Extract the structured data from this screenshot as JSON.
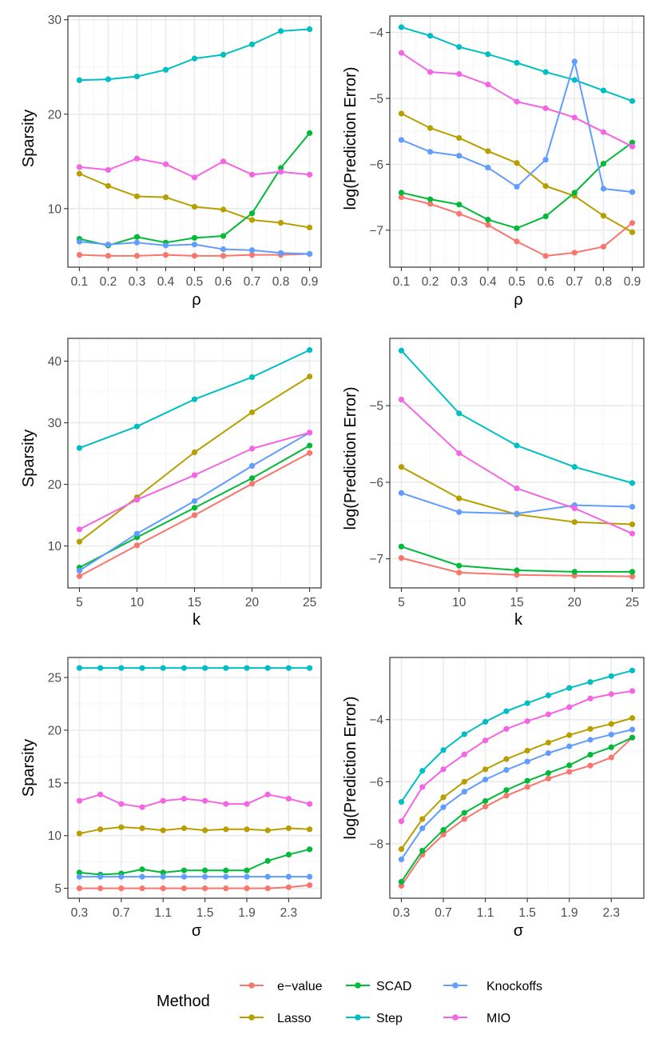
{
  "colors": {
    "e-value": "#F8766D",
    "Lasso": "#B79F00",
    "SCAD": "#00BA38",
    "Step": "#00BFC4",
    "Knockoffs": "#619CFF",
    "MIO": "#F564E3",
    "grid_major": "#EBEBEB",
    "grid_minor": "#F5F5F5",
    "panel_border": "#333333",
    "tick_text": "#4D4D4D"
  },
  "legend": {
    "title": "Method",
    "items": [
      {
        "name": "e-value",
        "label": "e−value"
      },
      {
        "name": "Lasso",
        "label": "Lasso"
      },
      {
        "name": "SCAD",
        "label": "SCAD"
      },
      {
        "name": "Step",
        "label": "Step"
      },
      {
        "name": "Knockoffs",
        "label": "Knockoffs"
      },
      {
        "name": "MIO",
        "label": "MIO"
      }
    ]
  },
  "chart_data": [
    {
      "type": "line",
      "id": "sparsity-rho",
      "xlabel": "ρ",
      "ylabel": "Sparsity",
      "x": [
        0.1,
        0.2,
        0.3,
        0.4,
        0.5,
        0.6,
        0.7,
        0.8,
        0.9
      ],
      "xticks": [
        0.1,
        0.2,
        0.3,
        0.4,
        0.5,
        0.6,
        0.7,
        0.8,
        0.9
      ],
      "xtick_labels": [
        "0.1",
        "0.2",
        "0.3",
        "0.4",
        "0.5",
        "0.6",
        "0.7",
        "0.8",
        "0.9"
      ],
      "xlim": [
        0.06,
        0.94
      ],
      "yticks": [
        10,
        20,
        30
      ],
      "ytick_labels": [
        "10",
        "20",
        "30"
      ],
      "ylim": [
        3.8,
        30.4
      ],
      "series": [
        {
          "name": "e-value",
          "values": [
            5.1,
            5.0,
            5.0,
            5.1,
            5.0,
            5.0,
            5.1,
            5.1,
            5.2
          ]
        },
        {
          "name": "Lasso",
          "values": [
            13.7,
            12.4,
            11.3,
            11.2,
            10.2,
            9.9,
            8.8,
            8.5,
            8.0
          ]
        },
        {
          "name": "SCAD",
          "values": [
            6.8,
            6.1,
            7.0,
            6.4,
            6.9,
            7.1,
            9.5,
            14.3,
            18.0
          ]
        },
        {
          "name": "Step",
          "values": [
            23.6,
            23.7,
            24.0,
            24.7,
            25.9,
            26.3,
            27.4,
            28.8,
            29.0
          ]
        },
        {
          "name": "Knockoffs",
          "values": [
            6.5,
            6.2,
            6.4,
            6.1,
            6.2,
            5.7,
            5.6,
            5.3,
            5.2
          ]
        },
        {
          "name": "MIO",
          "values": [
            14.4,
            14.1,
            15.3,
            14.7,
            13.3,
            15.0,
            13.6,
            13.9,
            13.6
          ]
        }
      ]
    },
    {
      "type": "line",
      "id": "prediction-rho",
      "xlabel": "ρ",
      "ylabel": "log(Prediction Error)",
      "x": [
        0.1,
        0.2,
        0.3,
        0.4,
        0.5,
        0.6,
        0.7,
        0.8,
        0.9
      ],
      "xticks": [
        0.1,
        0.2,
        0.3,
        0.4,
        0.5,
        0.6,
        0.7,
        0.8,
        0.9
      ],
      "xtick_labels": [
        "0.1",
        "0.2",
        "0.3",
        "0.4",
        "0.5",
        "0.6",
        "0.7",
        "0.8",
        "0.9"
      ],
      "xlim": [
        0.06,
        0.94
      ],
      "yticks": [
        -7,
        -6,
        -5,
        -4
      ],
      "ytick_labels": [
        "−7",
        "−6",
        "−5",
        "−4"
      ],
      "ylim": [
        -7.56,
        -3.75
      ],
      "series": [
        {
          "name": "e-value",
          "values": [
            -6.5,
            -6.6,
            -6.75,
            -6.92,
            -7.17,
            -7.39,
            -7.34,
            -7.25,
            -6.89
          ]
        },
        {
          "name": "Lasso",
          "values": [
            -5.23,
            -5.45,
            -5.6,
            -5.8,
            -5.98,
            -6.33,
            -6.48,
            -6.78,
            -7.03
          ]
        },
        {
          "name": "SCAD",
          "values": [
            -6.43,
            -6.53,
            -6.61,
            -6.84,
            -6.97,
            -6.79,
            -6.43,
            -5.99,
            -5.67
          ]
        },
        {
          "name": "Step",
          "values": [
            -3.92,
            -4.05,
            -4.22,
            -4.33,
            -4.46,
            -4.6,
            -4.72,
            -4.88,
            -5.04
          ]
        },
        {
          "name": "Knockoffs",
          "values": [
            -5.63,
            -5.81,
            -5.87,
            -6.05,
            -6.34,
            -5.93,
            -4.44,
            -6.37,
            -6.42
          ]
        },
        {
          "name": "MIO",
          "values": [
            -4.31,
            -4.6,
            -4.63,
            -4.79,
            -5.05,
            -5.15,
            -5.29,
            -5.51,
            -5.73
          ]
        }
      ]
    },
    {
      "type": "line",
      "id": "sparsity-k",
      "xlabel": "k",
      "ylabel": "Sparsity",
      "x": [
        5,
        10,
        15,
        20,
        25
      ],
      "xticks": [
        5,
        10,
        15,
        20,
        25
      ],
      "xtick_labels": [
        "5",
        "10",
        "15",
        "20",
        "25"
      ],
      "xlim": [
        4,
        26
      ],
      "yticks": [
        10,
        20,
        30,
        40
      ],
      "ytick_labels": [
        "10",
        "20",
        "30",
        "40"
      ],
      "ylim": [
        3.2,
        43.7
      ],
      "series": [
        {
          "name": "e-value",
          "values": [
            5.1,
            10.1,
            15.0,
            20.1,
            25.1
          ]
        },
        {
          "name": "Lasso",
          "values": [
            10.7,
            17.9,
            25.2,
            31.7,
            37.5
          ]
        },
        {
          "name": "SCAD",
          "values": [
            6.5,
            11.4,
            16.2,
            21.0,
            26.3
          ]
        },
        {
          "name": "Step",
          "values": [
            25.9,
            29.4,
            33.8,
            37.4,
            41.8
          ]
        },
        {
          "name": "Knockoffs",
          "values": [
            6.0,
            12.0,
            17.3,
            23.0,
            28.4
          ]
        },
        {
          "name": "MIO",
          "values": [
            12.7,
            17.5,
            21.5,
            25.8,
            28.4
          ]
        }
      ]
    },
    {
      "type": "line",
      "id": "prediction-k",
      "xlabel": "k",
      "ylabel": "log(Prediction Error)",
      "x": [
        5,
        10,
        15,
        20,
        25
      ],
      "xticks": [
        5,
        10,
        15,
        20,
        25
      ],
      "xtick_labels": [
        "5",
        "10",
        "15",
        "20",
        "25"
      ],
      "xlim": [
        4,
        26
      ],
      "yticks": [
        -7,
        -6,
        -5
      ],
      "ytick_labels": [
        "−7",
        "−6",
        "−5"
      ],
      "ylim": [
        -7.38,
        -4.12
      ],
      "series": [
        {
          "name": "e-value",
          "values": [
            -6.99,
            -7.18,
            -7.21,
            -7.22,
            -7.23
          ]
        },
        {
          "name": "Lasso",
          "values": [
            -5.8,
            -6.21,
            -6.42,
            -6.52,
            -6.55
          ]
        },
        {
          "name": "SCAD",
          "values": [
            -6.84,
            -7.09,
            -7.15,
            -7.17,
            -7.17
          ]
        },
        {
          "name": "Step",
          "values": [
            -4.28,
            -5.1,
            -5.52,
            -5.8,
            -6.01
          ]
        },
        {
          "name": "Knockoffs",
          "values": [
            -6.14,
            -6.39,
            -6.41,
            -6.3,
            -6.32
          ]
        },
        {
          "name": "MIO",
          "values": [
            -4.92,
            -5.62,
            -6.08,
            -6.34,
            -6.67
          ]
        }
      ]
    },
    {
      "type": "line",
      "id": "sparsity-sigma",
      "xlabel": "σ",
      "ylabel": "Sparsity",
      "x": [
        0.3,
        0.5,
        0.7,
        0.9,
        1.1,
        1.3,
        1.5,
        1.7,
        1.9,
        2.1,
        2.3,
        2.5
      ],
      "xticks": [
        0.3,
        0.7,
        1.1,
        1.5,
        1.9,
        2.3
      ],
      "xtick_labels": [
        "0.3",
        "0.7",
        "1.1",
        "1.5",
        "1.9",
        "2.3"
      ],
      "xlim": [
        0.19,
        2.61
      ],
      "yticks": [
        5,
        10,
        15,
        20,
        25
      ],
      "ytick_labels": [
        "5",
        "10",
        "15",
        "20",
        "25"
      ],
      "ylim": [
        4.06,
        26.9
      ],
      "series": [
        {
          "name": "e-value",
          "values": [
            5.0,
            5.0,
            5.0,
            5.0,
            5.0,
            5.0,
            5.0,
            5.0,
            5.0,
            5.0,
            5.1,
            5.3
          ]
        },
        {
          "name": "Lasso",
          "values": [
            10.2,
            10.6,
            10.8,
            10.7,
            10.5,
            10.7,
            10.5,
            10.6,
            10.6,
            10.5,
            10.7,
            10.6
          ]
        },
        {
          "name": "SCAD",
          "values": [
            6.5,
            6.3,
            6.4,
            6.8,
            6.5,
            6.7,
            6.7,
            6.7,
            6.7,
            7.6,
            8.2,
            8.7
          ]
        },
        {
          "name": "Step",
          "values": [
            25.9,
            25.9,
            25.9,
            25.9,
            25.9,
            25.9,
            25.9,
            25.9,
            25.9,
            25.9,
            25.9,
            25.9
          ]
        },
        {
          "name": "Knockoffs",
          "values": [
            6.1,
            6.1,
            6.1,
            6.1,
            6.1,
            6.1,
            6.1,
            6.1,
            6.1,
            6.1,
            6.1,
            6.1
          ]
        },
        {
          "name": "MIO",
          "values": [
            13.3,
            13.9,
            13.0,
            12.7,
            13.3,
            13.5,
            13.3,
            13.0,
            13.0,
            13.9,
            13.5,
            13.0
          ]
        }
      ]
    },
    {
      "type": "line",
      "id": "prediction-sigma",
      "xlabel": "σ",
      "ylabel": "log(Prediction Error)",
      "x": [
        0.3,
        0.5,
        0.7,
        0.9,
        1.1,
        1.3,
        1.5,
        1.7,
        1.9,
        2.1,
        2.3,
        2.5
      ],
      "xticks": [
        0.3,
        0.7,
        1.1,
        1.5,
        1.9,
        2.3
      ],
      "xtick_labels": [
        "0.3",
        "0.7",
        "1.1",
        "1.5",
        "1.9",
        "2.3"
      ],
      "xlim": [
        0.19,
        2.61
      ],
      "yticks": [
        -8,
        -6,
        -4
      ],
      "ytick_labels": [
        "−8",
        "−6",
        "−4"
      ],
      "ylim": [
        -9.75,
        -2.0
      ],
      "series": [
        {
          "name": "e-value",
          "values": [
            -9.35,
            -8.35,
            -7.7,
            -7.2,
            -6.8,
            -6.45,
            -6.17,
            -5.9,
            -5.68,
            -5.48,
            -5.22,
            -4.58
          ]
        },
        {
          "name": "Lasso",
          "values": [
            -8.17,
            -7.2,
            -6.5,
            -6.0,
            -5.6,
            -5.27,
            -5.0,
            -4.74,
            -4.5,
            -4.3,
            -4.14,
            -3.95
          ]
        },
        {
          "name": "SCAD",
          "values": [
            -9.22,
            -8.22,
            -7.55,
            -7.0,
            -6.62,
            -6.27,
            -5.97,
            -5.72,
            -5.47,
            -5.13,
            -4.89,
            -4.58
          ]
        },
        {
          "name": "Step",
          "values": [
            -6.65,
            -5.65,
            -4.98,
            -4.47,
            -4.07,
            -3.73,
            -3.47,
            -3.22,
            -2.98,
            -2.79,
            -2.6,
            -2.42
          ]
        },
        {
          "name": "Knockoffs",
          "values": [
            -8.5,
            -7.5,
            -6.82,
            -6.32,
            -5.93,
            -5.62,
            -5.35,
            -5.08,
            -4.86,
            -4.65,
            -4.48,
            -4.32
          ]
        },
        {
          "name": "MIO",
          "values": [
            -7.27,
            -6.17,
            -5.6,
            -5.12,
            -4.67,
            -4.3,
            -4.05,
            -3.83,
            -3.6,
            -3.32,
            -3.18,
            -3.08
          ]
        }
      ]
    }
  ]
}
